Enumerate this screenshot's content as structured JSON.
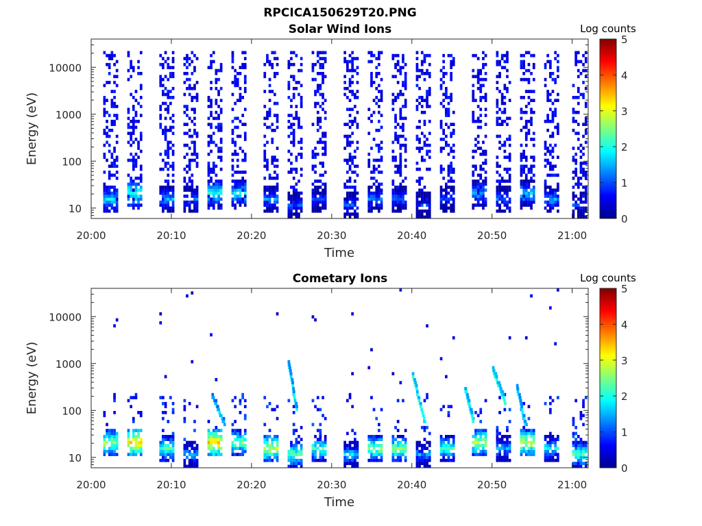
{
  "figure_title": "RPCICA150629T20.PNG",
  "chart_data": [
    {
      "type": "heatmap",
      "title": "Solar Wind Ions",
      "xlabel": "Time",
      "ylabel": "Energy (eV)",
      "x_ticks": [
        "20:00",
        "20:10",
        "20:20",
        "20:30",
        "20:40",
        "20:50",
        "21:00"
      ],
      "xlim": [
        "20:00",
        "21:02"
      ],
      "y_scale": "log",
      "y_ticks": [
        10,
        100,
        1000,
        10000
      ],
      "y_tick_labels": [
        "10",
        "100",
        "1000",
        "10000"
      ],
      "ylim": [
        6,
        40000
      ],
      "colorbar": {
        "label": "Log counts",
        "range": [
          0,
          5
        ],
        "ticks": [
          "0",
          "1",
          "2",
          "3",
          "4",
          "5"
        ],
        "colormap": "jet"
      },
      "sweep_start_minutes": [
        1.5,
        4.5,
        8.5,
        11.5,
        14.5,
        17.5,
        21.5,
        24.5,
        27.5,
        31.5,
        34.5,
        37.5,
        40.5,
        43.5,
        47.5,
        50.5,
        53.5,
        56.5,
        60
      ],
      "low_energy_peak_log_counts": [
        2.0,
        2.4,
        1.7,
        1.4,
        2.3,
        2.1,
        1.6,
        1.3,
        1.2,
        1.3,
        1.5,
        1.4,
        1.1,
        1.2,
        1.8,
        1.4,
        1.9,
        1.7,
        1.2
      ],
      "low_energy_peak_eV": [
        15,
        20,
        15,
        15,
        20,
        20,
        15,
        12,
        15,
        12,
        15,
        15,
        12,
        15,
        20,
        15,
        20,
        15,
        12
      ]
    },
    {
      "type": "heatmap",
      "title": "Cometary Ions",
      "xlabel": "Time",
      "ylabel": "Energy (eV)",
      "x_ticks": [
        "20:00",
        "20:10",
        "20:20",
        "20:30",
        "20:40",
        "20:50",
        "21:00"
      ],
      "xlim": [
        "20:00",
        "21:02"
      ],
      "y_scale": "log",
      "y_ticks": [
        10,
        100,
        1000,
        10000
      ],
      "y_tick_labels": [
        "10",
        "100",
        "1000",
        "10000"
      ],
      "ylim": [
        6,
        40000
      ],
      "colorbar": {
        "label": "Log counts",
        "range": [
          0,
          5
        ],
        "ticks": [
          "0",
          "1",
          "2",
          "3",
          "4",
          "5"
        ],
        "colormap": "jet"
      },
      "sweep_start_minutes": [
        1.5,
        4.5,
        8.5,
        11.5,
        14.5,
        17.5,
        21.5,
        24.5,
        27.5,
        31.5,
        34.5,
        37.5,
        40.5,
        43.5,
        47.5,
        50.5,
        53.5,
        56.5,
        60
      ],
      "low_energy_peak_log_counts": [
        3.0,
        3.6,
        2.6,
        1.8,
        3.7,
        2.8,
        3.2,
        2.7,
        2.6,
        2.0,
        2.9,
        2.8,
        1.7,
        2.5,
        3.1,
        1.9,
        3.2,
        2.2,
        2.6
      ],
      "low_energy_peak_eV": [
        20,
        22,
        15,
        12,
        20,
        20,
        15,
        12,
        15,
        12,
        15,
        15,
        12,
        15,
        20,
        15,
        20,
        15,
        12
      ],
      "dispersive_streaks": [
        {
          "start_min": 15.0,
          "end_min": 16.5,
          "eV_high": 200,
          "eV_low": 50,
          "log_counts": 1.4
        },
        {
          "start_min": 24.5,
          "end_min": 25.5,
          "eV_high": 1000,
          "eV_low": 100,
          "log_counts": 1.6
        },
        {
          "start_min": 40.0,
          "end_min": 41.5,
          "eV_high": 500,
          "eV_low": 60,
          "log_counts": 1.8
        },
        {
          "start_min": 46.5,
          "end_min": 47.5,
          "eV_high": 300,
          "eV_low": 60,
          "log_counts": 1.7
        },
        {
          "start_min": 50.0,
          "end_min": 51.5,
          "eV_high": 700,
          "eV_low": 150,
          "log_counts": 1.8
        },
        {
          "start_min": 53.0,
          "end_min": 54.0,
          "eV_high": 300,
          "eV_low": 50,
          "log_counts": 1.6
        }
      ]
    }
  ]
}
